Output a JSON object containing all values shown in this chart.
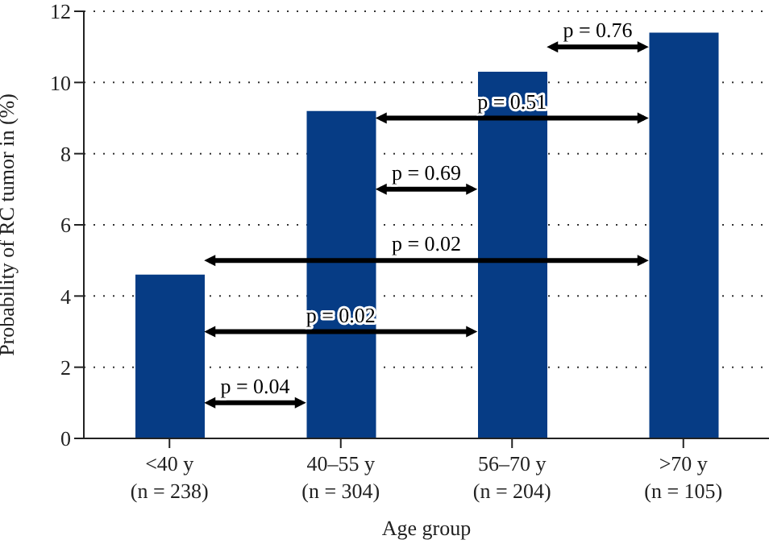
{
  "chart_data": {
    "type": "bar",
    "xlabel": "Age group",
    "ylabel": "Probability of RC tumor in (%)",
    "categories": [
      "<40 y\n(n = 238)",
      "40–55 y\n(n = 304)",
      "56–70 y\n(n = 204)",
      ">70 y\n(n = 105)"
    ],
    "values": [
      4.6,
      9.2,
      10.3,
      11.4
    ],
    "color": "#063c85",
    "ylim": [
      0,
      12
    ],
    "yticks": [
      0,
      2,
      4,
      6,
      8,
      10,
      12
    ],
    "grid": "y",
    "annotations": [
      "p = 0.04",
      "p = 0.02",
      "p = 0.02",
      "p = 0.69",
      "p = 0.51",
      "p = 0.76"
    ]
  }
}
